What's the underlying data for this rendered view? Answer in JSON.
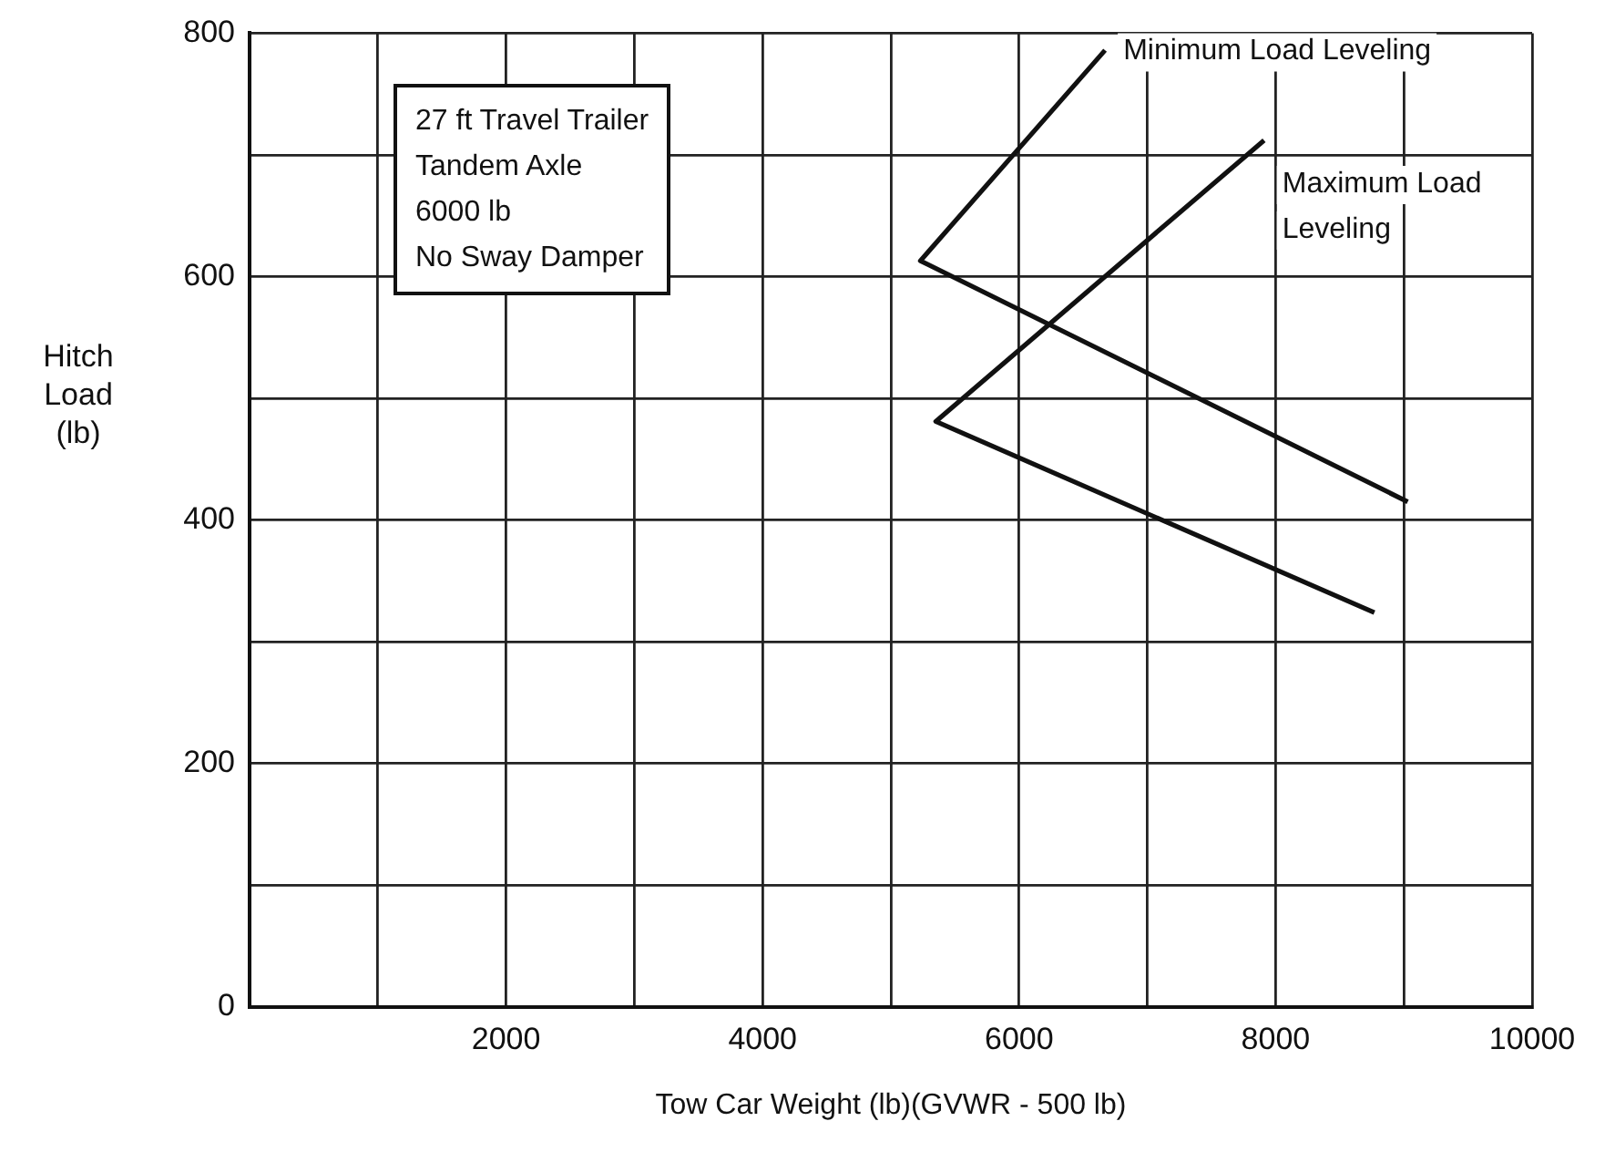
{
  "chart_data": {
    "type": "line",
    "xlabel": "Tow Car Weight (lb)(GVWR - 500 lb)",
    "ylabel": "Hitch Load (lb)",
    "annotations": [
      "27 ft Travel Trailer",
      "Tandem Axle",
      "6000 lb",
      "No Sway Damper"
    ],
    "series": [
      {
        "name": "Minimum Load Leveling",
        "color": "#111111",
        "x": [
          6670,
          5230,
          9030
        ],
        "values": [
          786,
          613,
          415
        ]
      },
      {
        "name": "Maximum Load Leveling",
        "color": "#111111",
        "x": [
          7910,
          5350,
          8770
        ],
        "values": [
          712,
          481,
          324
        ]
      }
    ],
    "xlim": [
      0,
      10000
    ],
    "xticks": [
      {
        "value": 1000,
        "label": null
      },
      2000,
      {
        "value": 3000,
        "label": null
      },
      4000,
      {
        "value": 5000,
        "label": null
      },
      6000,
      {
        "value": 7000,
        "label": null
      },
      8000,
      {
        "value": 9000,
        "label": null
      },
      10000
    ],
    "ylim": [
      0,
      800
    ],
    "yticks": [
      0,
      {
        "value": 100,
        "label": null
      },
      200,
      {
        "value": 300,
        "label": null
      },
      400,
      {
        "value": 500,
        "label": null
      },
      600,
      {
        "value": 700,
        "label": null
      },
      800
    ],
    "grid": true,
    "legend": false,
    "marker": "none",
    "line_style": "solid"
  }
}
